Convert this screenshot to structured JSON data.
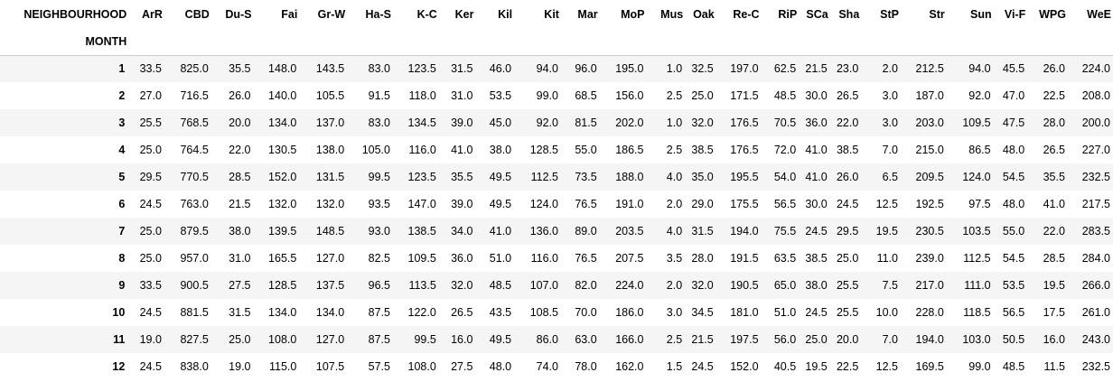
{
  "table": {
    "columns_title": "NEIGHBOURHOOD",
    "index_title": "MONTH",
    "columns": [
      "ArR",
      "CBD",
      "Du-S",
      "Fai",
      "Gr-W",
      "Ha-S",
      "K-C",
      "Ker",
      "Kil",
      "Kit",
      "Mar",
      "MoP",
      "Mus",
      "Oak",
      "Re-C",
      "RiP",
      "SCa",
      "Sha",
      "StP",
      "Str",
      "Sun",
      "Vi-F",
      "WPG",
      "WeE"
    ],
    "rows": [
      {
        "index": "1",
        "values": [
          "33.5",
          "825.0",
          "35.5",
          "148.0",
          "143.5",
          "83.0",
          "123.5",
          "31.5",
          "46.0",
          "94.0",
          "96.0",
          "195.0",
          "1.0",
          "32.5",
          "197.0",
          "62.5",
          "21.5",
          "23.0",
          "2.0",
          "212.5",
          "94.0",
          "45.5",
          "26.0",
          "224.0"
        ]
      },
      {
        "index": "2",
        "values": [
          "27.0",
          "716.5",
          "26.0",
          "140.0",
          "105.5",
          "91.5",
          "118.0",
          "31.0",
          "53.5",
          "99.0",
          "68.5",
          "156.0",
          "2.5",
          "25.0",
          "171.5",
          "48.5",
          "30.0",
          "26.5",
          "3.0",
          "187.0",
          "92.0",
          "47.0",
          "22.5",
          "208.0"
        ]
      },
      {
        "index": "3",
        "values": [
          "25.5",
          "768.5",
          "20.0",
          "134.0",
          "137.0",
          "83.0",
          "134.5",
          "39.0",
          "45.0",
          "92.0",
          "81.5",
          "202.0",
          "1.0",
          "32.0",
          "176.5",
          "70.5",
          "36.0",
          "22.0",
          "3.0",
          "203.0",
          "109.5",
          "47.5",
          "28.0",
          "200.0"
        ]
      },
      {
        "index": "4",
        "values": [
          "25.0",
          "764.5",
          "22.0",
          "130.5",
          "138.0",
          "105.0",
          "116.0",
          "41.0",
          "38.0",
          "128.5",
          "55.0",
          "186.5",
          "2.5",
          "38.5",
          "176.5",
          "72.0",
          "41.0",
          "38.5",
          "7.0",
          "215.0",
          "86.5",
          "48.0",
          "26.5",
          "227.0"
        ]
      },
      {
        "index": "5",
        "values": [
          "29.5",
          "770.5",
          "28.5",
          "152.0",
          "131.5",
          "99.5",
          "123.5",
          "35.5",
          "49.5",
          "112.5",
          "73.5",
          "188.0",
          "4.0",
          "35.0",
          "195.5",
          "54.0",
          "41.0",
          "26.0",
          "6.5",
          "209.5",
          "124.0",
          "54.5",
          "35.5",
          "232.5"
        ]
      },
      {
        "index": "6",
        "values": [
          "24.5",
          "763.0",
          "21.5",
          "132.0",
          "132.0",
          "93.5",
          "147.0",
          "39.0",
          "49.5",
          "124.0",
          "76.5",
          "191.0",
          "2.0",
          "29.0",
          "175.5",
          "56.5",
          "30.0",
          "24.5",
          "12.5",
          "192.5",
          "97.5",
          "48.0",
          "41.0",
          "217.5"
        ]
      },
      {
        "index": "7",
        "values": [
          "25.0",
          "879.5",
          "38.0",
          "139.5",
          "148.5",
          "93.0",
          "138.5",
          "34.0",
          "41.0",
          "136.0",
          "89.0",
          "203.5",
          "4.0",
          "31.5",
          "194.0",
          "75.5",
          "24.5",
          "29.5",
          "19.5",
          "230.5",
          "103.5",
          "55.0",
          "22.0",
          "283.5"
        ]
      },
      {
        "index": "8",
        "values": [
          "25.0",
          "957.0",
          "31.0",
          "165.5",
          "127.0",
          "82.5",
          "109.5",
          "36.0",
          "51.0",
          "116.0",
          "76.5",
          "207.5",
          "3.5",
          "28.0",
          "191.5",
          "63.5",
          "38.5",
          "25.0",
          "11.0",
          "239.0",
          "112.5",
          "54.5",
          "28.5",
          "284.0"
        ]
      },
      {
        "index": "9",
        "values": [
          "33.5",
          "900.5",
          "27.5",
          "128.5",
          "137.5",
          "96.5",
          "113.5",
          "32.0",
          "48.5",
          "107.0",
          "82.0",
          "224.0",
          "2.0",
          "32.0",
          "190.5",
          "65.0",
          "38.0",
          "25.5",
          "7.5",
          "217.0",
          "111.0",
          "53.5",
          "19.5",
          "266.0"
        ]
      },
      {
        "index": "10",
        "values": [
          "24.5",
          "881.5",
          "31.5",
          "134.0",
          "134.0",
          "87.5",
          "122.0",
          "26.5",
          "43.5",
          "108.5",
          "70.0",
          "186.0",
          "3.0",
          "34.5",
          "181.0",
          "51.0",
          "24.5",
          "25.5",
          "10.0",
          "228.0",
          "118.5",
          "56.5",
          "17.5",
          "261.0"
        ]
      },
      {
        "index": "11",
        "values": [
          "19.0",
          "827.5",
          "25.0",
          "108.0",
          "127.0",
          "87.5",
          "99.5",
          "16.0",
          "49.5",
          "86.0",
          "63.0",
          "166.0",
          "2.5",
          "21.5",
          "197.5",
          "56.0",
          "25.0",
          "20.0",
          "7.0",
          "194.0",
          "103.0",
          "50.5",
          "16.0",
          "243.0"
        ]
      },
      {
        "index": "12",
        "values": [
          "24.5",
          "838.0",
          "19.0",
          "115.0",
          "107.5",
          "57.5",
          "108.0",
          "27.5",
          "48.0",
          "74.0",
          "78.0",
          "162.0",
          "1.5",
          "24.5",
          "152.0",
          "40.5",
          "19.5",
          "22.5",
          "12.5",
          "169.5",
          "99.0",
          "48.5",
          "11.5",
          "232.5"
        ]
      }
    ]
  },
  "colors": {
    "stripe": "#f5f5f5",
    "background": "#ffffff",
    "header_rule": "#c9c9c9",
    "text": "#000000"
  }
}
